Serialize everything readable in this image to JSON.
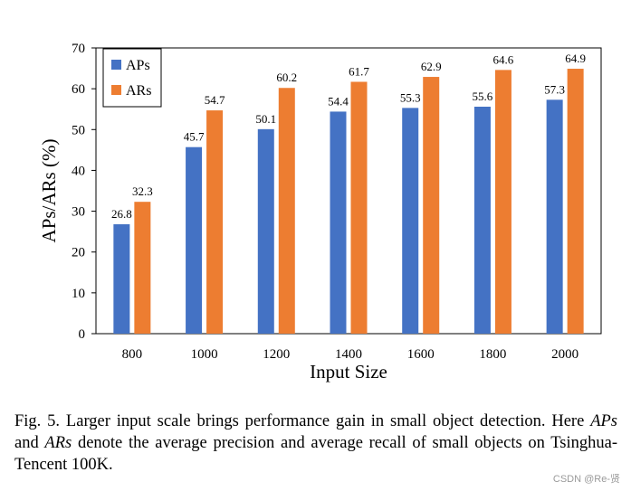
{
  "chart_data": {
    "type": "bar",
    "categories": [
      "800",
      "1000",
      "1200",
      "1400",
      "1600",
      "1800",
      "2000"
    ],
    "series": [
      {
        "name": "APs",
        "color": "#4472C4",
        "values": [
          26.8,
          45.7,
          50.1,
          54.4,
          55.3,
          55.6,
          57.3
        ]
      },
      {
        "name": "ARs",
        "color": "#ED7D31",
        "values": [
          32.3,
          54.7,
          60.2,
          61.7,
          62.9,
          64.6,
          64.9
        ]
      }
    ],
    "xlabel": "Input Size",
    "ylabel": "APs/ARs (%)",
    "ylim": [
      0,
      70
    ],
    "yticks": [
      0,
      10,
      20,
      30,
      40,
      50,
      60,
      70
    ],
    "grid": false,
    "legend": "top-left"
  },
  "caption": {
    "prefix": "Fig. 5.  Larger input scale brings performance gain in small object detection. Here ",
    "term1": "APs",
    "middle1": " and ",
    "term2": "ARs",
    "suffix": " denote the average precision and average recall of small objects on Tsinghua-Tencent 100K."
  },
  "watermark": "CSDN @Re-贤"
}
